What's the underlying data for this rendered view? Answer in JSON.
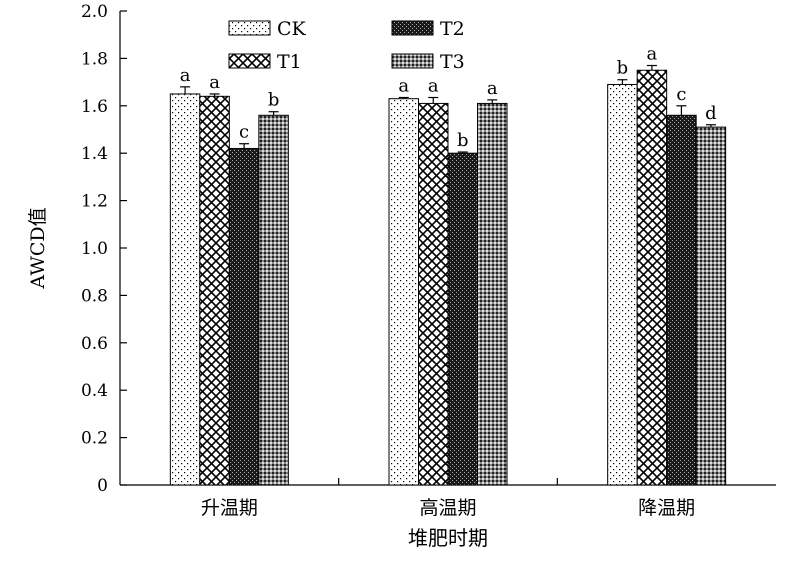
{
  "chart_data": {
    "type": "bar",
    "title": "",
    "xlabel": "堆肥时期",
    "ylabel": "AWCD值",
    "ylim": [
      0,
      2.0
    ],
    "yticks": [
      "0",
      "0.2",
      "0.4",
      "0.6",
      "0.8",
      "1.0",
      "1.2",
      "1.4",
      "1.6",
      "1.8",
      "2.0"
    ],
    "ytick_values": [
      0,
      0.2,
      0.4,
      0.6,
      0.8,
      1.0,
      1.2,
      1.4,
      1.6,
      1.8,
      2.0
    ],
    "grid": false,
    "legend_position": "top",
    "categories": [
      "升温期",
      "高温期",
      "降温期"
    ],
    "series": [
      {
        "name": "CK",
        "pattern": "dots",
        "values": [
          1.65,
          1.63,
          1.69
        ],
        "errors": [
          0.03,
          0.005,
          0.02
        ],
        "labels": [
          "a",
          "a",
          "b"
        ]
      },
      {
        "name": "T1",
        "pattern": "crosshatch",
        "values": [
          1.64,
          1.61,
          1.75
        ],
        "errors": [
          0.01,
          0.025,
          0.02
        ],
        "labels": [
          "a",
          "a",
          "a"
        ]
      },
      {
        "name": "T2",
        "pattern": "dense",
        "values": [
          1.42,
          1.4,
          1.56
        ],
        "errors": [
          0.02,
          0.005,
          0.04
        ],
        "labels": [
          "c",
          "b",
          "c"
        ]
      },
      {
        "name": "T3",
        "pattern": "checker",
        "values": [
          1.56,
          1.61,
          1.51
        ],
        "errors": [
          0.015,
          0.015,
          0.01
        ],
        "labels": [
          "b",
          "a",
          "d"
        ]
      }
    ]
  }
}
